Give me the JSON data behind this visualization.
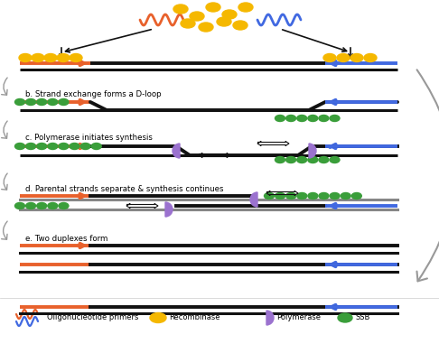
{
  "bg_color": "#ffffff",
  "strand_colors": {
    "orange": "#E8612C",
    "black": "#111111",
    "blue": "#4169E1",
    "green": "#3a9e3a",
    "purple": "#9B72CF",
    "gold": "#F5B800",
    "gray": "#999999"
  },
  "legend": {
    "primer_label": "Oligonucleotide primers",
    "recombinase_label": "Recombinase",
    "polymerase_label": "Polymerase",
    "ssb_label": "SSB"
  },
  "step_labels": {
    "b": "b. Strand exchange forms a D-loop",
    "c": "c. Polymerase initiates synthesis",
    "d": "d. Parental strands separate & synthesis continues",
    "e": "e. Two duplexes form"
  }
}
